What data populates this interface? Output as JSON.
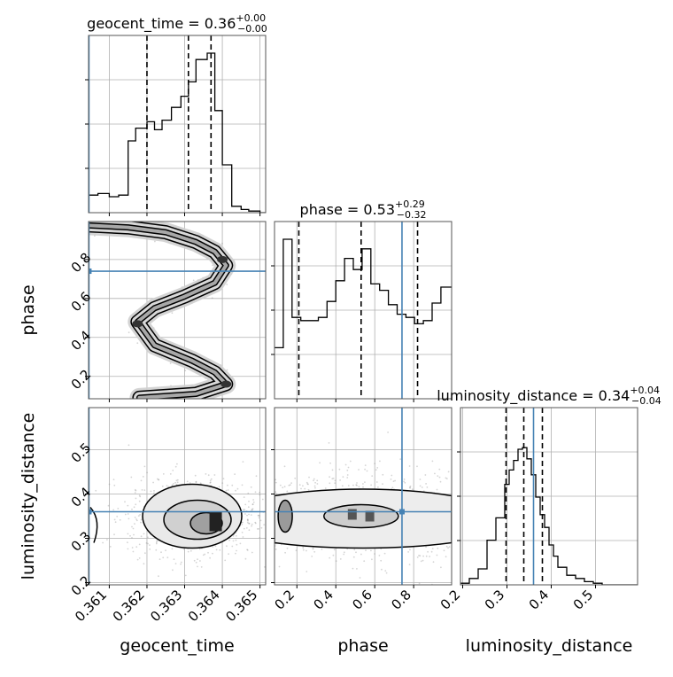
{
  "chart_data": {
    "type": "corner",
    "parameters": [
      "geocent_time",
      "phase",
      "luminosity_distance"
    ],
    "titles": [
      {
        "name": "geocent_time",
        "value": "0.36",
        "plus": "+0.00",
        "minus": "−0.00"
      },
      {
        "name": "phase",
        "value": "0.53",
        "plus": "+0.29",
        "minus": "−0.32"
      },
      {
        "name": "luminosity_distance",
        "value": "0.34",
        "plus": "+0.04",
        "minus": "−0.04"
      }
    ],
    "axis_labels": {
      "x": [
        "geocent_time",
        "phase",
        "luminosity_distance"
      ],
      "y": [
        "phase",
        "luminosity_distance"
      ]
    },
    "ranges": {
      "geocent_time": [
        0.36045,
        0.36515
      ],
      "phase": [
        0.085,
        0.995
      ],
      "luminosity_distance": [
        0.195,
        0.595
      ]
    },
    "ticks": {
      "geocent_time": {
        "values": [
          0.361,
          0.362,
          0.363,
          0.364,
          0.365
        ],
        "labels": [
          "0.361",
          "0.362",
          "0.363",
          "0.364",
          "0.365"
        ]
      },
      "phase": {
        "values": [
          0.2,
          0.4,
          0.6,
          0.8
        ],
        "labels": [
          "0.2",
          "0.4",
          "0.6",
          "0.8"
        ]
      },
      "luminosity_distance": {
        "values": [
          0.2,
          0.3,
          0.4,
          0.5
        ],
        "labels": [
          "0.2",
          "0.3",
          "0.4",
          "0.5"
        ]
      }
    },
    "injection": {
      "geocent_time": 0.36046,
      "phase": 0.74,
      "luminosity_distance": 0.36
    },
    "quantiles": {
      "geocent_time": [
        0.362,
        0.3631,
        0.3637
      ],
      "phase": [
        0.21,
        0.53,
        0.82
      ],
      "luminosity_distance": [
        0.298,
        0.338,
        0.38
      ]
    },
    "histograms": {
      "geocent_time": {
        "edges": [
          0.36045,
          0.3607,
          0.361,
          0.36125,
          0.3615,
          0.3617,
          0.362,
          0.3622,
          0.3624,
          0.36265,
          0.3629,
          0.3631,
          0.3633,
          0.3636,
          0.3638,
          0.364,
          0.36425,
          0.3645,
          0.3647,
          0.365,
          0.36515
        ],
        "counts": [
          0.11,
          0.12,
          0.1,
          0.11,
          0.45,
          0.53,
          0.57,
          0.52,
          0.58,
          0.66,
          0.73,
          0.82,
          0.96,
          1.0,
          0.64,
          0.3,
          0.04,
          0.02,
          0.01,
          0.0
        ]
      },
      "phase": {
        "edges": [
          0.085,
          0.13,
          0.175,
          0.22,
          0.265,
          0.31,
          0.355,
          0.4,
          0.445,
          0.49,
          0.535,
          0.58,
          0.625,
          0.67,
          0.715,
          0.76,
          0.805,
          0.85,
          0.895,
          0.94,
          0.995
        ],
        "counts": [
          0.32,
          1.0,
          0.51,
          0.49,
          0.49,
          0.51,
          0.61,
          0.74,
          0.88,
          0.81,
          0.94,
          0.72,
          0.68,
          0.59,
          0.53,
          0.51,
          0.47,
          0.49,
          0.6,
          0.7
        ]
      },
      "luminosity_distance": {
        "edges": [
          0.195,
          0.215,
          0.235,
          0.255,
          0.275,
          0.295,
          0.305,
          0.315,
          0.325,
          0.335,
          0.345,
          0.355,
          0.365,
          0.375,
          0.385,
          0.395,
          0.405,
          0.415,
          0.435,
          0.455,
          0.475,
          0.495,
          0.515,
          0.535,
          0.595
        ],
        "counts": [
          0.01,
          0.04,
          0.1,
          0.28,
          0.42,
          0.63,
          0.72,
          0.78,
          0.85,
          0.86,
          0.79,
          0.69,
          0.55,
          0.44,
          0.36,
          0.25,
          0.18,
          0.11,
          0.06,
          0.04,
          0.02,
          0.01,
          0.0,
          0.0
        ]
      }
    },
    "contours": {
      "phase_vs_geocent_time": {
        "description": "S-shaped band: low phase at high time, mid phase near 0.3618, high phase near 0.3641",
        "track": [
          [
            0.36045,
            0.975
          ],
          [
            0.3615,
            0.965
          ],
          [
            0.3625,
            0.94
          ],
          [
            0.3633,
            0.89
          ],
          [
            0.3638,
            0.84
          ],
          [
            0.3641,
            0.77
          ],
          [
            0.3638,
            0.68
          ],
          [
            0.363,
            0.61
          ],
          [
            0.3622,
            0.55
          ],
          [
            0.36175,
            0.48
          ],
          [
            0.3622,
            0.36
          ],
          [
            0.3632,
            0.28
          ],
          [
            0.3638,
            0.22
          ],
          [
            0.3641,
            0.16
          ],
          [
            0.3633,
            0.11
          ],
          [
            0.3618,
            0.09
          ]
        ]
      },
      "luminosity_distance_vs_geocent_time": {
        "center": [
          0.3632,
          0.35
        ],
        "peak": [
          0.3638,
          0.34
        ],
        "extent_x": [
          0.3615,
          0.3646
        ],
        "extent_y": [
          0.29,
          0.42
        ]
      },
      "luminosity_distance_vs_phase": {
        "center": [
          0.55,
          0.35
        ],
        "peak": [
          0.52,
          0.34
        ],
        "extent_x": [
          0.085,
          0.995
        ],
        "extent_y": [
          0.27,
          0.43
        ]
      }
    },
    "colors": {
      "injection": "#4682b4",
      "histogram": "#000000",
      "grid": "#b0b0b0",
      "contour": "#000000"
    }
  }
}
